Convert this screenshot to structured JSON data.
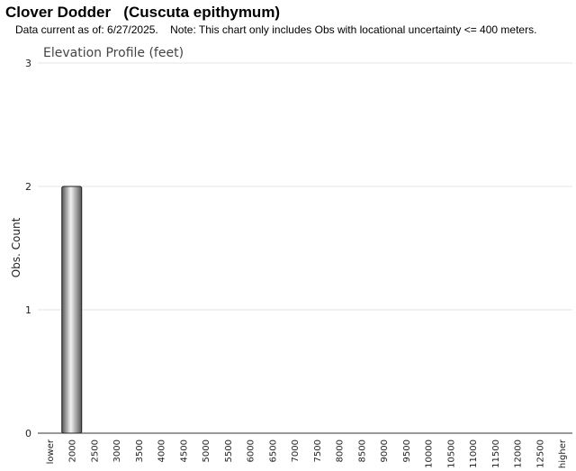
{
  "header": {
    "title": "Clover Dodder   (Cuscuta epithymum)",
    "note": "Data current as of: 6/27/2025.    Note: This chart only includes Obs with locational uncertainty <= 400 meters."
  },
  "colors": {
    "grid": "#e6e6e6",
    "axis": "#333333",
    "bar_light": "#f2f2f2",
    "bar_dark": "#555555",
    "bar_stroke": "#222222"
  },
  "chart_data": {
    "type": "bar",
    "title": "Elevation Profile (feet)",
    "xlabel": "",
    "ylabel": "Obs. Count",
    "ylim": [
      0,
      3
    ],
    "yticks": [
      0,
      1,
      2,
      3
    ],
    "grid": true,
    "legend": "none",
    "categories": [
      "lower",
      "2000",
      "2500",
      "3000",
      "3500",
      "4000",
      "4500",
      "5000",
      "5500",
      "6000",
      "6500",
      "7000",
      "7500",
      "8000",
      "8500",
      "9000",
      "9500",
      "10000",
      "10500",
      "11000",
      "11500",
      "12000",
      "12500",
      "higher"
    ],
    "values": [
      0,
      2,
      0,
      0,
      0,
      0,
      0,
      0,
      0,
      0,
      0,
      0,
      0,
      0,
      0,
      0,
      0,
      0,
      0,
      0,
      0,
      0,
      0,
      0
    ]
  }
}
